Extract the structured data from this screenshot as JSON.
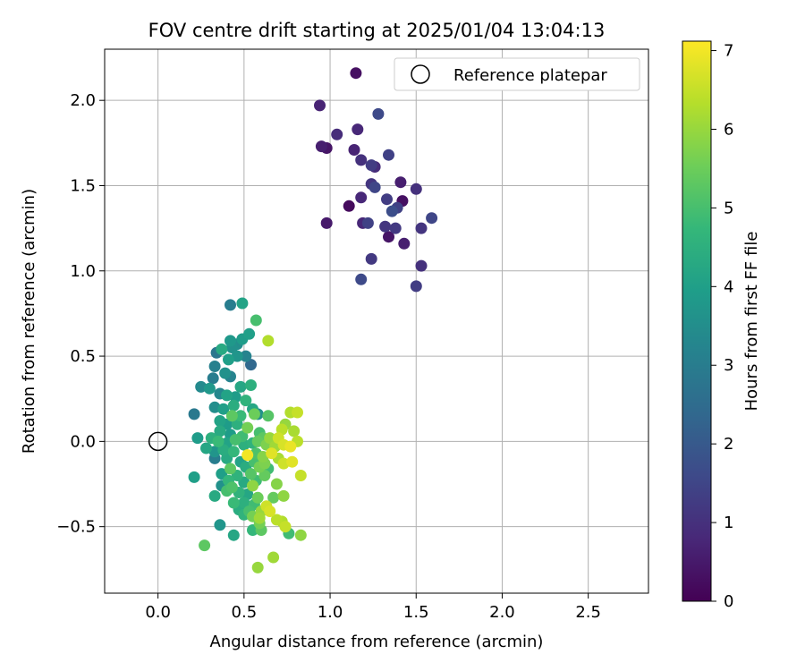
{
  "chart_data": {
    "type": "scatter",
    "title": "FOV centre drift starting at 2025/01/04 13:04:13",
    "xlabel": "Angular distance from reference (arcmin)",
    "ylabel": "Rotation from reference (arcmin)",
    "xlim": [
      -0.31,
      2.85
    ],
    "ylim": [
      -0.89,
      2.3
    ],
    "xticks": [
      0.0,
      0.5,
      1.0,
      1.5,
      2.0,
      2.5
    ],
    "xtick_labels": [
      "0.0",
      "0.5",
      "1.0",
      "1.5",
      "2.0",
      "2.5"
    ],
    "yticks": [
      -0.5,
      0.0,
      0.5,
      1.0,
      1.5,
      2.0
    ],
    "ytick_labels": [
      "−0.5",
      "0.0",
      "0.5",
      "1.0",
      "1.5",
      "2.0"
    ],
    "grid": true,
    "legend": {
      "position": "top-right",
      "label": "Reference platepar"
    },
    "reference_point": {
      "x": 0.0,
      "y": 0.0
    },
    "colorbar": {
      "label": "Hours from first FF file",
      "min": 0,
      "max": 7.12,
      "ticks": [
        0,
        1,
        2,
        3,
        4,
        5,
        6,
        7
      ],
      "tick_labels": [
        "0",
        "1",
        "2",
        "3",
        "4",
        "5",
        "6",
        "7"
      ],
      "colormap": "viridis",
      "colormap_stops": [
        "#440154",
        "#482878",
        "#3e4989",
        "#31688e",
        "#26828e",
        "#1f9e89",
        "#35b779",
        "#6ece58",
        "#b5de2b",
        "#fde725"
      ]
    },
    "series": [
      {
        "points": [
          {
            "x": 1.15,
            "y": 2.16,
            "c": 0.3
          },
          {
            "x": 0.94,
            "y": 1.97,
            "c": 0.7
          },
          {
            "x": 1.28,
            "y": 1.92,
            "c": 1.6
          },
          {
            "x": 1.16,
            "y": 1.83,
            "c": 0.8
          },
          {
            "x": 1.04,
            "y": 1.8,
            "c": 0.9
          },
          {
            "x": 0.95,
            "y": 1.73,
            "c": 0.6
          },
          {
            "x": 0.98,
            "y": 1.72,
            "c": 0.4
          },
          {
            "x": 1.14,
            "y": 1.71,
            "c": 0.7
          },
          {
            "x": 1.34,
            "y": 1.68,
            "c": 1.4
          },
          {
            "x": 1.18,
            "y": 1.65,
            "c": 1.0
          },
          {
            "x": 1.24,
            "y": 1.62,
            "c": 1.3
          },
          {
            "x": 1.26,
            "y": 1.61,
            "c": 0.9
          },
          {
            "x": 1.41,
            "y": 1.52,
            "c": 0.6
          },
          {
            "x": 1.24,
            "y": 1.51,
            "c": 1.1
          },
          {
            "x": 1.26,
            "y": 1.49,
            "c": 1.5
          },
          {
            "x": 1.5,
            "y": 1.48,
            "c": 1.0
          },
          {
            "x": 1.18,
            "y": 1.43,
            "c": 0.8
          },
          {
            "x": 1.33,
            "y": 1.42,
            "c": 1.3
          },
          {
            "x": 1.42,
            "y": 1.41,
            "c": 0.3
          },
          {
            "x": 1.11,
            "y": 1.38,
            "c": 0.2
          },
          {
            "x": 1.39,
            "y": 1.37,
            "c": 1.4
          },
          {
            "x": 1.36,
            "y": 1.35,
            "c": 1.7
          },
          {
            "x": 1.59,
            "y": 1.31,
            "c": 1.5
          },
          {
            "x": 0.98,
            "y": 1.28,
            "c": 0.5
          },
          {
            "x": 1.19,
            "y": 1.28,
            "c": 0.8
          },
          {
            "x": 1.22,
            "y": 1.28,
            "c": 1.4
          },
          {
            "x": 1.32,
            "y": 1.26,
            "c": 1.1
          },
          {
            "x": 1.38,
            "y": 1.25,
            "c": 1.2
          },
          {
            "x": 1.53,
            "y": 1.25,
            "c": 1.1
          },
          {
            "x": 1.34,
            "y": 1.2,
            "c": 0.4
          },
          {
            "x": 1.43,
            "y": 1.16,
            "c": 0.6
          },
          {
            "x": 1.24,
            "y": 1.07,
            "c": 1.2
          },
          {
            "x": 1.53,
            "y": 1.03,
            "c": 1.0
          },
          {
            "x": 1.18,
            "y": 0.95,
            "c": 1.6
          },
          {
            "x": 1.5,
            "y": 0.91,
            "c": 1.3
          },
          {
            "x": 0.42,
            "y": 0.8,
            "c": 3.0
          },
          {
            "x": 0.49,
            "y": 0.81,
            "c": 4.1
          },
          {
            "x": 0.57,
            "y": 0.71,
            "c": 5.0
          },
          {
            "x": 0.64,
            "y": 0.59,
            "c": 6.3
          },
          {
            "x": 0.53,
            "y": 0.63,
            "c": 4.0
          },
          {
            "x": 0.42,
            "y": 0.59,
            "c": 3.8
          },
          {
            "x": 0.46,
            "y": 0.57,
            "c": 3.5
          },
          {
            "x": 0.49,
            "y": 0.6,
            "c": 3.9
          },
          {
            "x": 0.43,
            "y": 0.55,
            "c": 3.6
          },
          {
            "x": 0.37,
            "y": 0.54,
            "c": 4.3
          },
          {
            "x": 0.34,
            "y": 0.52,
            "c": 2.8
          },
          {
            "x": 0.51,
            "y": 0.5,
            "c": 3.2
          },
          {
            "x": 0.41,
            "y": 0.48,
            "c": 4.0
          },
          {
            "x": 0.46,
            "y": 0.5,
            "c": 3.7
          },
          {
            "x": 0.54,
            "y": 0.45,
            "c": 2.4
          },
          {
            "x": 0.33,
            "y": 0.44,
            "c": 3.1
          },
          {
            "x": 0.39,
            "y": 0.4,
            "c": 3.6
          },
          {
            "x": 0.42,
            "y": 0.38,
            "c": 3.2
          },
          {
            "x": 0.32,
            "y": 0.37,
            "c": 3.0
          },
          {
            "x": 0.25,
            "y": 0.32,
            "c": 3.4
          },
          {
            "x": 0.3,
            "y": 0.31,
            "c": 3.8
          },
          {
            "x": 0.48,
            "y": 0.32,
            "c": 4.2
          },
          {
            "x": 0.54,
            "y": 0.33,
            "c": 4.5
          },
          {
            "x": 0.36,
            "y": 0.28,
            "c": 3.3
          },
          {
            "x": 0.4,
            "y": 0.27,
            "c": 4.1
          },
          {
            "x": 0.45,
            "y": 0.26,
            "c": 3.9
          },
          {
            "x": 0.51,
            "y": 0.24,
            "c": 4.6
          },
          {
            "x": 0.33,
            "y": 0.2,
            "c": 3.5
          },
          {
            "x": 0.38,
            "y": 0.19,
            "c": 4.0
          },
          {
            "x": 0.44,
            "y": 0.21,
            "c": 4.4
          },
          {
            "x": 0.55,
            "y": 0.19,
            "c": 4.2
          },
          {
            "x": 0.48,
            "y": 0.15,
            "c": 4.8
          },
          {
            "x": 0.21,
            "y": 0.16,
            "c": 2.9
          },
          {
            "x": 0.43,
            "y": 0.15,
            "c": 5.3
          },
          {
            "x": 0.58,
            "y": 0.16,
            "c": 3.6
          },
          {
            "x": 0.56,
            "y": 0.16,
            "c": 5.5
          },
          {
            "x": 0.64,
            "y": 0.15,
            "c": 5.2
          },
          {
            "x": 0.36,
            "y": 0.12,
            "c": 4.1
          },
          {
            "x": 0.4,
            "y": 0.1,
            "c": 3.9
          },
          {
            "x": 0.46,
            "y": 0.1,
            "c": 4.5
          },
          {
            "x": 0.52,
            "y": 0.08,
            "c": 5.6
          },
          {
            "x": 0.59,
            "y": 0.05,
            "c": 5.0
          },
          {
            "x": 0.74,
            "y": 0.1,
            "c": 6.0
          },
          {
            "x": 0.77,
            "y": 0.17,
            "c": 6.3
          },
          {
            "x": 0.81,
            "y": 0.17,
            "c": 6.5
          },
          {
            "x": 0.36,
            "y": 0.06,
            "c": 4.3
          },
          {
            "x": 0.42,
            "y": 0.04,
            "c": 3.9
          },
          {
            "x": 0.49,
            "y": 0.03,
            "c": 4.9
          },
          {
            "x": 0.61,
            "y": 0.02,
            "c": 5.3
          },
          {
            "x": 0.65,
            "y": 0.02,
            "c": 6.0
          },
          {
            "x": 0.7,
            "y": 0.02,
            "c": 6.6
          },
          {
            "x": 0.72,
            "y": 0.07,
            "c": 6.4
          },
          {
            "x": 0.79,
            "y": 0.06,
            "c": 6.2
          },
          {
            "x": 0.23,
            "y": 0.02,
            "c": 3.9
          },
          {
            "x": 0.31,
            "y": 0.02,
            "c": 4.5
          },
          {
            "x": 0.35,
            "y": 0.0,
            "c": 4.8
          },
          {
            "x": 0.4,
            "y": -0.01,
            "c": 4.1
          },
          {
            "x": 0.45,
            "y": 0.01,
            "c": 5.0
          },
          {
            "x": 0.5,
            "y": -0.02,
            "c": 4.5
          },
          {
            "x": 0.55,
            "y": -0.01,
            "c": 4.6
          },
          {
            "x": 0.58,
            "y": 0.0,
            "c": 5.4
          },
          {
            "x": 0.63,
            "y": -0.02,
            "c": 5.7
          },
          {
            "x": 0.68,
            "y": -0.03,
            "c": 6.1
          },
          {
            "x": 0.73,
            "y": -0.02,
            "c": 6.7
          },
          {
            "x": 0.77,
            "y": -0.03,
            "c": 6.9
          },
          {
            "x": 0.81,
            "y": 0.0,
            "c": 6.4
          },
          {
            "x": 0.28,
            "y": -0.04,
            "c": 4.2
          },
          {
            "x": 0.33,
            "y": -0.06,
            "c": 3.7
          },
          {
            "x": 0.38,
            "y": -0.05,
            "c": 4.4
          },
          {
            "x": 0.44,
            "y": -0.06,
            "c": 4.7
          },
          {
            "x": 0.52,
            "y": -0.08,
            "c": 7.0
          },
          {
            "x": 0.57,
            "y": -0.07,
            "c": 5.1
          },
          {
            "x": 0.61,
            "y": -0.09,
            "c": 5.8
          },
          {
            "x": 0.66,
            "y": -0.07,
            "c": 6.8
          },
          {
            "x": 0.7,
            "y": -0.1,
            "c": 6.2
          },
          {
            "x": 0.33,
            "y": -0.1,
            "c": 3.0
          },
          {
            "x": 0.4,
            "y": -0.1,
            "c": 4.3
          },
          {
            "x": 0.48,
            "y": -0.12,
            "c": 4.1
          },
          {
            "x": 0.56,
            "y": -0.12,
            "c": 5.0
          },
          {
            "x": 0.62,
            "y": -0.13,
            "c": 5.7
          },
          {
            "x": 0.73,
            "y": -0.13,
            "c": 6.6
          },
          {
            "x": 0.78,
            "y": -0.12,
            "c": 6.8
          },
          {
            "x": 0.42,
            "y": -0.16,
            "c": 5.3
          },
          {
            "x": 0.51,
            "y": -0.15,
            "c": 4.4
          },
          {
            "x": 0.59,
            "y": -0.15,
            "c": 5.6
          },
          {
            "x": 0.64,
            "y": -0.16,
            "c": 4.9
          },
          {
            "x": 0.37,
            "y": -0.19,
            "c": 4.0
          },
          {
            "x": 0.46,
            "y": -0.2,
            "c": 4.6
          },
          {
            "x": 0.54,
            "y": -0.19,
            "c": 5.2
          },
          {
            "x": 0.62,
            "y": -0.2,
            "c": 5.4
          },
          {
            "x": 0.21,
            "y": -0.21,
            "c": 4.0
          },
          {
            "x": 0.83,
            "y": -0.2,
            "c": 6.5
          },
          {
            "x": 0.41,
            "y": -0.23,
            "c": 4.7
          },
          {
            "x": 0.5,
            "y": -0.24,
            "c": 4.3
          },
          {
            "x": 0.57,
            "y": -0.23,
            "c": 4.9
          },
          {
            "x": 0.37,
            "y": -0.26,
            "c": 3.6
          },
          {
            "x": 0.43,
            "y": -0.27,
            "c": 5.1
          },
          {
            "x": 0.55,
            "y": -0.26,
            "c": 5.9
          },
          {
            "x": 0.69,
            "y": -0.25,
            "c": 5.8
          },
          {
            "x": 0.4,
            "y": -0.29,
            "c": 5.0
          },
          {
            "x": 0.47,
            "y": -0.3,
            "c": 4.6
          },
          {
            "x": 0.52,
            "y": -0.31,
            "c": 4.2
          },
          {
            "x": 0.33,
            "y": -0.32,
            "c": 4.3
          },
          {
            "x": 0.58,
            "y": -0.33,
            "c": 5.5
          },
          {
            "x": 0.67,
            "y": -0.33,
            "c": 5.4
          },
          {
            "x": 0.73,
            "y": -0.32,
            "c": 5.9
          },
          {
            "x": 0.44,
            "y": -0.36,
            "c": 4.8
          },
          {
            "x": 0.5,
            "y": -0.36,
            "c": 4.5
          },
          {
            "x": 0.56,
            "y": -0.37,
            "c": 4.9
          },
          {
            "x": 0.63,
            "y": -0.38,
            "c": 6.6
          },
          {
            "x": 0.47,
            "y": -0.4,
            "c": 4.4
          },
          {
            "x": 0.53,
            "y": -0.41,
            "c": 5.0
          },
          {
            "x": 0.6,
            "y": -0.41,
            "c": 6.0
          },
          {
            "x": 0.65,
            "y": -0.41,
            "c": 6.7
          },
          {
            "x": 0.5,
            "y": -0.43,
            "c": 4.6
          },
          {
            "x": 0.55,
            "y": -0.44,
            "c": 5.6
          },
          {
            "x": 0.59,
            "y": -0.45,
            "c": 6.1
          },
          {
            "x": 0.69,
            "y": -0.46,
            "c": 6.4
          },
          {
            "x": 0.72,
            "y": -0.47,
            "c": 6.3
          },
          {
            "x": 0.36,
            "y": -0.49,
            "c": 3.7
          },
          {
            "x": 0.59,
            "y": -0.48,
            "c": 5.6
          },
          {
            "x": 0.74,
            "y": -0.5,
            "c": 6.5
          },
          {
            "x": 0.55,
            "y": -0.52,
            "c": 4.7
          },
          {
            "x": 0.6,
            "y": -0.52,
            "c": 5.3
          },
          {
            "x": 0.76,
            "y": -0.54,
            "c": 4.9
          },
          {
            "x": 0.44,
            "y": -0.55,
            "c": 4.2
          },
          {
            "x": 0.83,
            "y": -0.55,
            "c": 5.9
          },
          {
            "x": 0.27,
            "y": -0.61,
            "c": 5.3
          },
          {
            "x": 0.67,
            "y": -0.68,
            "c": 6.1
          },
          {
            "x": 0.58,
            "y": -0.74,
            "c": 6.0
          }
        ]
      }
    ]
  }
}
